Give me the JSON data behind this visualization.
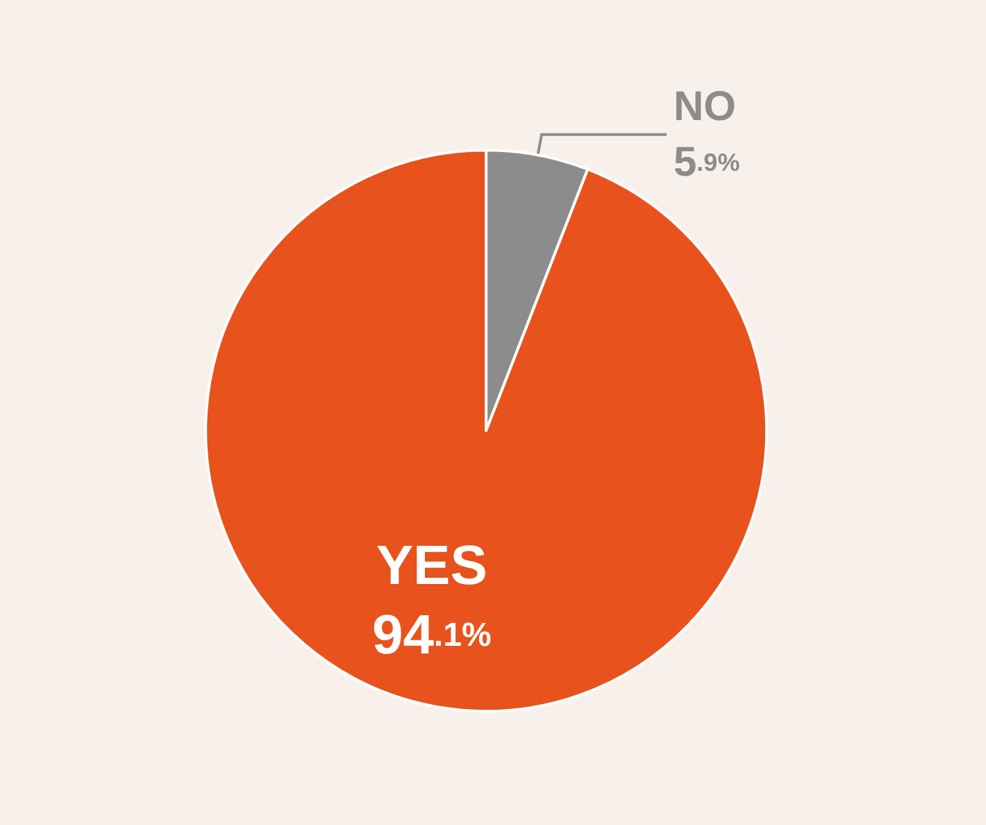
{
  "chart_data": {
    "type": "pie",
    "categories": [
      "NO",
      "YES"
    ],
    "values": [
      5.9,
      94.1
    ],
    "colors": [
      "#8c8c8c",
      "#e8521c"
    ],
    "value_labels": [
      "5.9%",
      "94.1%"
    ]
  }
}
